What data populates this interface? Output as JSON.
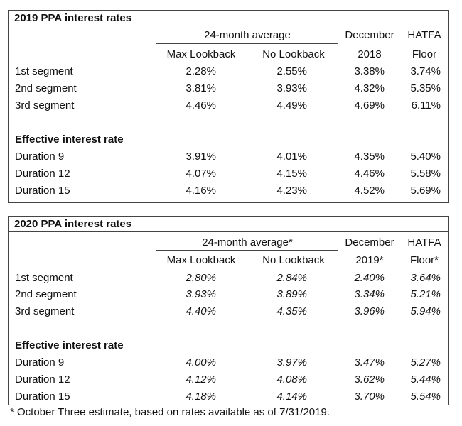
{
  "table1": {
    "title": "2019 PPA interest rates",
    "header": {
      "avg": "24-month average",
      "max": "Max Lookback",
      "no": "No Lookback",
      "dec1": "December",
      "dec2": "2018",
      "hatfa1": "HATFA",
      "hatfa2": "Floor"
    },
    "rows": [
      {
        "label": "1st segment",
        "v": [
          "2.28%",
          "2.55%",
          "3.38%",
          "3.74%"
        ]
      },
      {
        "label": "2nd segment",
        "v": [
          "3.81%",
          "3.93%",
          "4.32%",
          "5.35%"
        ]
      },
      {
        "label": "3rd segment",
        "v": [
          "4.46%",
          "4.49%",
          "4.69%",
          "6.11%"
        ]
      }
    ],
    "section": "Effective interest rate",
    "rows2": [
      {
        "label": "Duration 9",
        "v": [
          "3.91%",
          "4.01%",
          "4.35%",
          "5.40%"
        ]
      },
      {
        "label": "Duration 12",
        "v": [
          "4.07%",
          "4.15%",
          "4.46%",
          "5.58%"
        ]
      },
      {
        "label": "Duration 15",
        "v": [
          "4.16%",
          "4.23%",
          "4.52%",
          "5.69%"
        ]
      }
    ]
  },
  "table2": {
    "title": "2020 PPA interest rates",
    "header": {
      "avg": "24-month average*",
      "max": "Max Lookback",
      "no": "No Lookback",
      "dec1": "December",
      "dec2": "2019*",
      "hatfa1": "HATFA",
      "hatfa2": "Floor*"
    },
    "rows": [
      {
        "label": "1st segment",
        "v": [
          "2.80%",
          "2.84%",
          "2.40%",
          "3.64%"
        ]
      },
      {
        "label": "2nd segment",
        "v": [
          "3.93%",
          "3.89%",
          "3.34%",
          "5.21%"
        ]
      },
      {
        "label": "3rd segment",
        "v": [
          "4.40%",
          "4.35%",
          "3.96%",
          "5.94%"
        ]
      }
    ],
    "section": "Effective interest rate",
    "rows2": [
      {
        "label": "Duration 9",
        "v": [
          "4.00%",
          "3.97%",
          "3.47%",
          "5.27%"
        ]
      },
      {
        "label": "Duration 12",
        "v": [
          "4.12%",
          "4.08%",
          "3.62%",
          "5.44%"
        ]
      },
      {
        "label": "Duration 15",
        "v": [
          "4.18%",
          "4.14%",
          "3.70%",
          "5.54%"
        ]
      }
    ]
  },
  "footnote": "* October Three estimate, based on rates available as of 7/31/2019."
}
